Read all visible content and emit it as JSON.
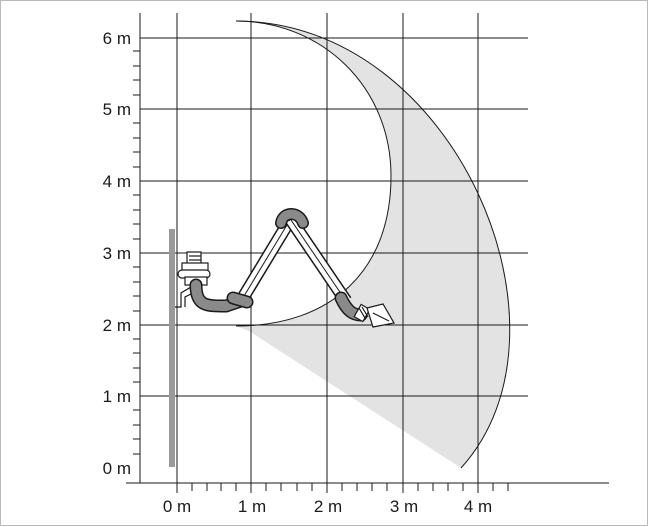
{
  "y_axis": {
    "unit": "m",
    "ticks": [
      {
        "value": 0,
        "label": "0 m"
      },
      {
        "value": 1,
        "label": "1 m"
      },
      {
        "value": 2,
        "label": "2 m"
      },
      {
        "value": 3,
        "label": "3 m"
      },
      {
        "value": 4,
        "label": "4 m"
      },
      {
        "value": 5,
        "label": "5 m"
      },
      {
        "value": 6,
        "label": "6 m"
      }
    ]
  },
  "x_axis": {
    "unit": "m",
    "ticks": [
      {
        "value": 0,
        "label": "0 m"
      },
      {
        "value": 1,
        "label": "1 m"
      },
      {
        "value": 2,
        "label": "2 m"
      },
      {
        "value": 3,
        "label": "3 m"
      },
      {
        "value": 4,
        "label": "4 m"
      }
    ]
  },
  "colors": {
    "grid": "#1a1a1a",
    "reach_area": "#e3e3e3",
    "arm_fill": "#ffffff",
    "elbow": "#8a8a8a",
    "wall": "#9a9a9a"
  },
  "icons": {
    "arm": "articulated-extraction-arm-icon",
    "hood": "extraction-hood-icon",
    "mount": "wall-bracket-icon"
  }
}
